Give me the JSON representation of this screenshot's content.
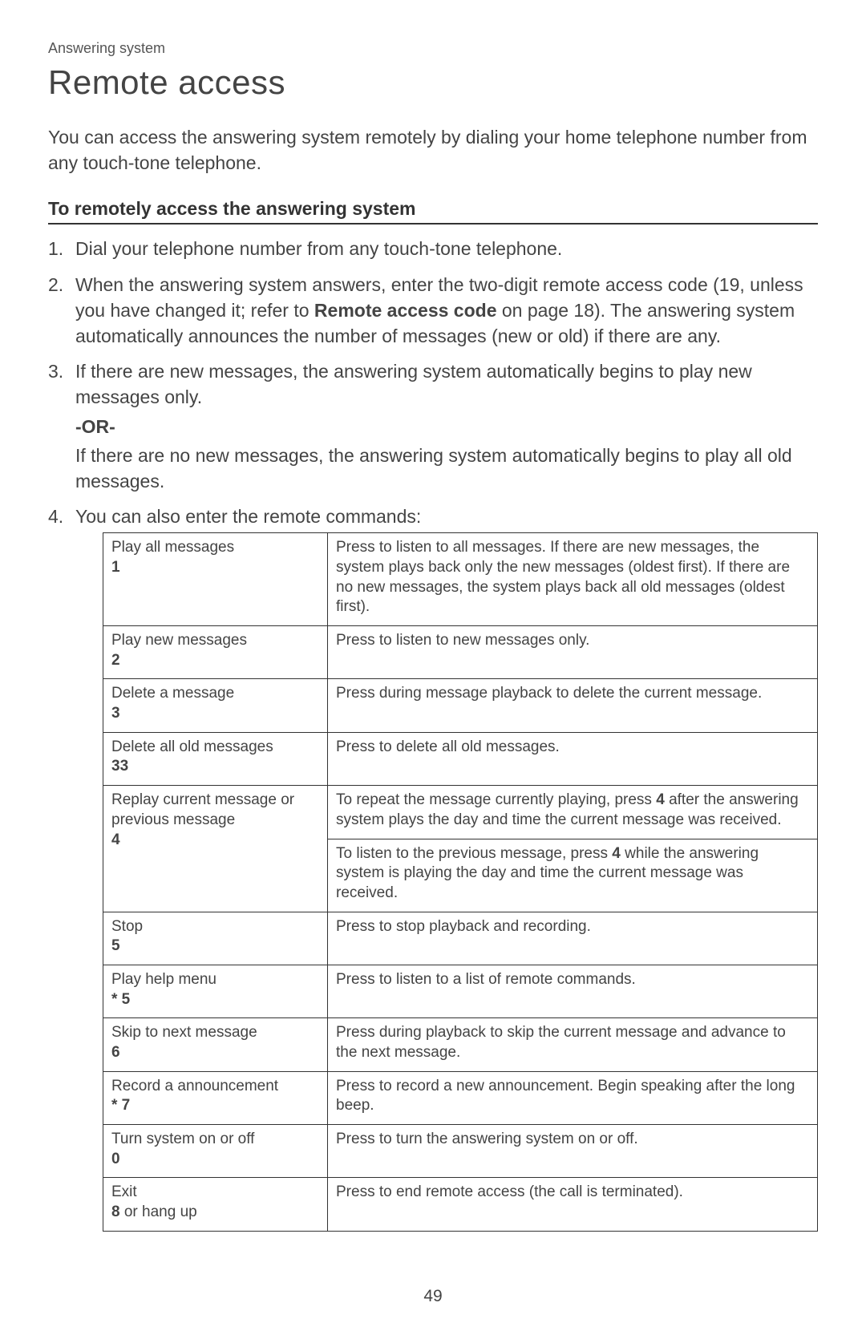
{
  "breadcrumb": "Answering system",
  "title": "Remote access",
  "intro": "You can access the answering system remotely by dialing your home telephone number from any touch-tone telephone.",
  "sectionHeading": "To remotely access the answering system",
  "steps": {
    "s1": "Dial your telephone number from any touch-tone telephone.",
    "s2a": "When the answering system answers, enter the two-digit remote access code (19, unless you have changed it; refer to ",
    "s2bold": "Remote access code",
    "s2b": " on page 18). The answering system automatically announces the number of messages (new or old) if there are any.",
    "s3a": "If there are new messages, the answering system automatically begins to play new messages only.",
    "s3or": "-OR-",
    "s3b": "If there are no new messages, the answering system automatically begins to play all old messages.",
    "s4": "You can also enter the remote commands:"
  },
  "commands": [
    {
      "label": "Play all messages",
      "key": "1",
      "desc": "Press to listen to all messages. If there are new messages, the system plays back only the new messages (oldest first). If there are no new messages, the system plays back all old messages (oldest first)."
    },
    {
      "label": "Play new messages",
      "key": "2",
      "desc": "Press to listen to new messages only."
    },
    {
      "label": "Delete a message",
      "key": "3",
      "desc": "Press during message playback to delete the current message."
    },
    {
      "label": "Delete all old messages",
      "key": "33",
      "desc": "Press to delete all old messages."
    },
    {
      "label": "Replay current message or previous message",
      "key": "4",
      "desc_p1a": "To repeat the message currently playing, press ",
      "desc_p1bold": "4",
      "desc_p1b": " after the answering system plays the day and time the current message was received.",
      "desc_p2a": "To listen to the previous message, press ",
      "desc_p2bold": "4",
      "desc_p2b": " while the answering system is playing the day and time the current message was received."
    },
    {
      "label": "Stop",
      "key": "5",
      "desc": "Press to stop playback and recording."
    },
    {
      "label": "Play help menu",
      "key": "* 5",
      "desc": "Press to listen to a list of remote commands."
    },
    {
      "label": "Skip to next message",
      "key": "6",
      "desc": "Press during playback to skip the current message and advance to the next message."
    },
    {
      "label": "Record a announcement",
      "key": "* 7",
      "desc": "Press to record a new announcement. Begin speaking after the long beep."
    },
    {
      "label": "Turn system on or off",
      "key": "0",
      "desc": "Press to turn the answering system on or off."
    },
    {
      "label": "Exit",
      "key": "8",
      "keyRest": " or hang up",
      "desc": "Press to end remote access (the call is terminated)."
    }
  ],
  "pageNumber": "49",
  "style": {
    "bodyWidth": 1080,
    "bodyHeight": 1665,
    "background": "#ffffff",
    "textColor": "#333333",
    "fontFamily": "Arial, sans-serif",
    "titleFontSize": 42,
    "bodyFontSize": 23,
    "tableFontSize": 19,
    "borderColor": "#333333",
    "cmdColWidth": 280
  }
}
